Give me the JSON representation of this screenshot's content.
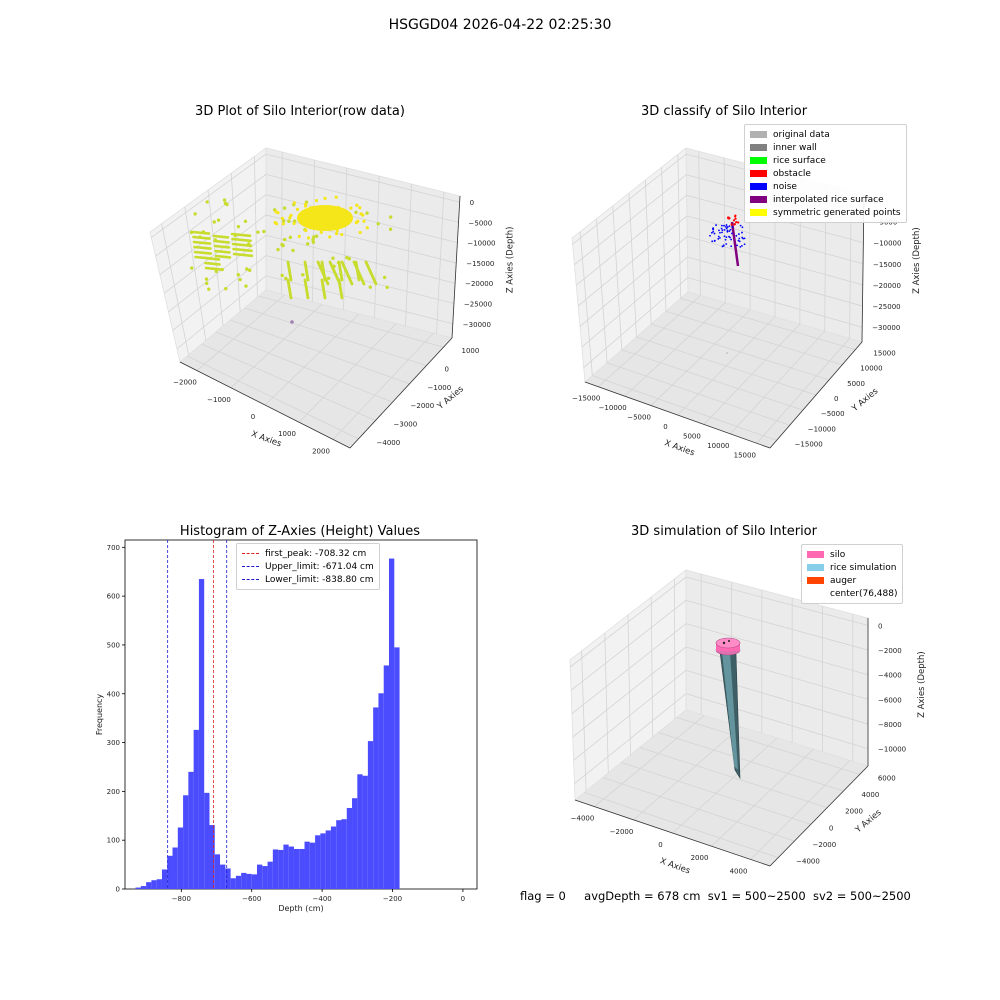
{
  "figure": {
    "title": "HSGGD04 2026-04-22 02:25:30",
    "status": {
      "flag": "flag = 0",
      "avg_depth": "avgDepth = 678 cm",
      "sv1": "sv1 = 500~2500",
      "sv2": "sv2 = 500~2500"
    }
  },
  "colors": {
    "raw_points": "#c8dc2e",
    "raw_dense": "#f5e61a",
    "hist_bar": "#4c4cff",
    "peak_line": "#e02020",
    "limit_line": "#1a1acc"
  },
  "chart_data": [
    {
      "type": "scatter3d",
      "title": "3D Plot of Silo Interior(row data)",
      "xlabel": "X Axies",
      "ylabel": "Y Axies",
      "zlabel": "Z Axies (Depth)",
      "x_ticks": [
        "−2000",
        "−1000",
        "0",
        "1000",
        "2000"
      ],
      "y_ticks": [
        "1000",
        "0",
        "−1000",
        "−2000",
        "−3000",
        "−4000"
      ],
      "z_ticks": [
        "0",
        "−5000",
        "−10000",
        "−15000",
        "−20000",
        "−25000",
        "−30000"
      ]
    },
    {
      "type": "scatter3d",
      "title": "3D classify of Silo Interior",
      "xlabel": "X Axies",
      "ylabel": "Y Axies",
      "zlabel": "Z Axies (Depth)",
      "x_ticks": [
        "−15000",
        "−10000",
        "−5000",
        "0",
        "5000",
        "10000",
        "15000"
      ],
      "y_ticks": [
        "15000",
        "10000",
        "5000",
        "0",
        "−5000",
        "−10000",
        "−15000"
      ],
      "z_ticks": [
        "0",
        "−5000",
        "−10000",
        "−15000",
        "−20000",
        "−25000",
        "−30000"
      ],
      "legend": [
        {
          "label": "original data",
          "color": "#b0b0b0"
        },
        {
          "label": "inner wall",
          "color": "#808080"
        },
        {
          "label": "rice surface",
          "color": "#00ff00"
        },
        {
          "label": "obstacle",
          "color": "#ff0000"
        },
        {
          "label": "noise",
          "color": "#0000ff"
        },
        {
          "label": "interpolated rice surface",
          "color": "#800080"
        },
        {
          "label": "symmetric generated points",
          "color": "#ffff00"
        }
      ]
    },
    {
      "type": "bar",
      "title": "Histogram of Z-Axies (Height) Values",
      "xlabel": "Depth (cm)",
      "ylabel": "Frequency",
      "xlim": [
        -960,
        40
      ],
      "ylim": [
        0,
        715
      ],
      "x_ticks": [
        -800,
        -600,
        -400,
        -200,
        0
      ],
      "y_ticks": [
        0,
        100,
        200,
        300,
        400,
        500,
        600,
        700
      ],
      "bin_width": 15,
      "bins_start": -930,
      "values": [
        3,
        6,
        14,
        18,
        20,
        40,
        68,
        85,
        126,
        192,
        240,
        326,
        635,
        197,
        131,
        71,
        50,
        42,
        22,
        27,
        33,
        31,
        30,
        50,
        47,
        56,
        81,
        80,
        91,
        87,
        82,
        82,
        97,
        95,
        110,
        114,
        120,
        128,
        141,
        143,
        166,
        186,
        235,
        232,
        303,
        372,
        401,
        458,
        677,
        495
      ],
      "vlines": [
        {
          "label": "first_peak: -708.32 cm",
          "value": -708.32,
          "color": "#e02020"
        },
        {
          "label": "Upper_limit: -671.04 cm",
          "value": -671.04,
          "color": "#1a1acc"
        },
        {
          "label": "Lower_limit: -838.80 cm",
          "value": -838.8,
          "color": "#1a1acc"
        }
      ]
    },
    {
      "type": "surface3d",
      "title": "3D simulation of Silo Interior",
      "xlabel": "X Axies",
      "ylabel": "Y Axies",
      "zlabel": "Z Axies (Depth)",
      "x_ticks": [
        "−4000",
        "−2000",
        "0",
        "2000",
        "4000"
      ],
      "y_ticks": [
        "6000",
        "4000",
        "2000",
        "0",
        "−2000",
        "−4000"
      ],
      "z_ticks": [
        "0",
        "−2000",
        "−4000",
        "−6000",
        "−8000",
        "−10000"
      ],
      "legend": [
        {
          "label": "silo",
          "color": "#ff69b4"
        },
        {
          "label": "rice simulation",
          "color": "#87ceeb"
        },
        {
          "label": "auger",
          "color": "#ff4500"
        },
        {
          "label": "center(76,488)",
          "color": "#ffffff"
        }
      ]
    }
  ]
}
